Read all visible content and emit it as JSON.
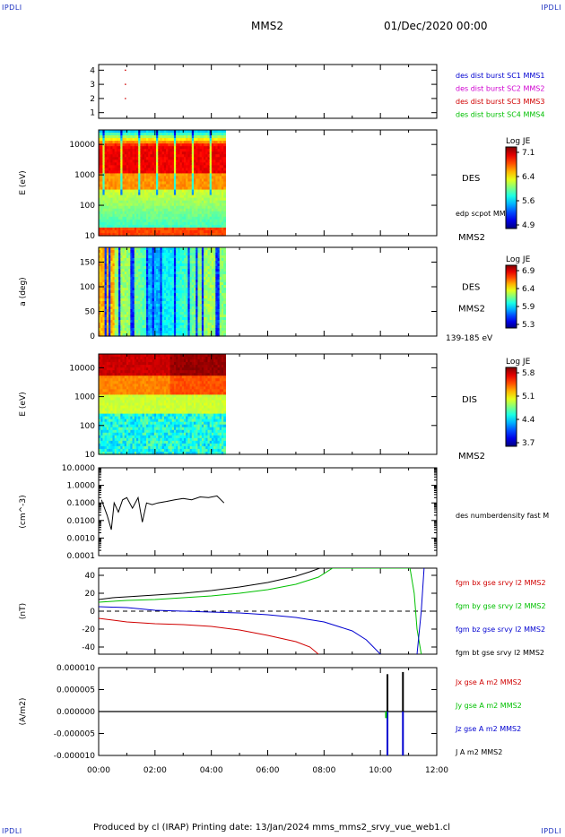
{
  "header": {
    "corner_tl": "IPDLI",
    "corner_tr": "IPDLI",
    "corner_bl": "IPDLI",
    "corner_br": "IPDLI",
    "title": "MMS2",
    "date": "01/Dec/2020 00:00"
  },
  "footer": {
    "text": "Produced by cl (IRAP)   Printing date: 13/Jan/2024   mms_mms2_srvy_vue_web1.cl"
  },
  "colors": {
    "blue": "#0000d0",
    "magenta": "#d000d0",
    "red": "#d00000",
    "green": "#00c000",
    "black": "#000000"
  },
  "chart_data": [
    {
      "type": "scatter",
      "name": "spacecraft",
      "x_ticks": [
        "00:00",
        "02:00",
        "04:00",
        "06:00",
        "08:00",
        "10:00",
        "12:00"
      ],
      "xlim_hours": [
        0,
        12
      ],
      "yticks": [
        "1",
        "2",
        "3",
        "4"
      ],
      "ylim": [
        0.6,
        4.4
      ],
      "legend": [
        {
          "label": "des dist burst SC1 MMS1",
          "color": "#0000d0"
        },
        {
          "label": "des dist burst SC2 MMS2",
          "color": "#d000d0"
        },
        {
          "label": "des dist burst SC3 MMS3",
          "color": "#d00000"
        },
        {
          "label": "des dist burst SC4 MMS4",
          "color": "#00c000"
        }
      ],
      "points": [
        {
          "x": 0.95,
          "y": 3,
          "color": "#d00000"
        },
        {
          "x": 0.95,
          "y": 2,
          "color": "#d00000"
        },
        {
          "x": 0.95,
          "y": 4,
          "color": "#d00000"
        }
      ]
    },
    {
      "type": "heatmap",
      "ylabel": "E (eV)",
      "yticks": [
        "10",
        "100",
        "1000",
        "10000"
      ],
      "scale": "log",
      "ylim": [
        10,
        30000
      ],
      "data_end_hours": 4.5,
      "label": "DES",
      "sc_label": "MMS2",
      "note": "edp scpot MMS2",
      "colorbar": {
        "title": "Log JE",
        "ticks": [
          "7.1",
          "6.4",
          "5.6",
          "4.9"
        ]
      }
    },
    {
      "type": "heatmap",
      "ylabel": "a (deg)",
      "yticks": [
        "0",
        "50",
        "100",
        "150"
      ],
      "ylim": [
        0,
        180
      ],
      "data_end_hours": 4.5,
      "label": "DES",
      "sc_label": "MMS2",
      "note": "139-185 eV",
      "colorbar": {
        "title": "Log JE",
        "ticks": [
          "6.9",
          "6.4",
          "5.9",
          "5.3"
        ]
      }
    },
    {
      "type": "heatmap",
      "ylabel": "E (eV)",
      "yticks": [
        "10",
        "100",
        "1000",
        "10000"
      ],
      "scale": "log",
      "ylim": [
        10,
        30000
      ],
      "data_end_hours": 4.5,
      "label": "DIS",
      "sc_label": "MMS2",
      "colorbar": {
        "title": "Log JE",
        "ticks": [
          "5.8",
          "5.1",
          "4.4",
          "3.7"
        ]
      }
    },
    {
      "type": "line",
      "ylabel": "(cm^-3)",
      "scale": "log",
      "yticks": [
        "0.0001",
        "0.0010",
        "0.0100",
        "0.1000",
        "1.0000",
        "10.0000"
      ],
      "ylim": [
        0.0001,
        10
      ],
      "legend": [
        {
          "label": "des numberdensity fast M",
          "color": "#000000"
        }
      ],
      "series": [
        {
          "name": "des numberdensity fast M",
          "x_hours": [
            0.1,
            0.3,
            0.45,
            0.55,
            0.7,
            0.85,
            1.0,
            1.2,
            1.4,
            1.55,
            1.7,
            1.9,
            2.1,
            2.4,
            2.7,
            3.0,
            3.3,
            3.6,
            3.9,
            4.2,
            4.45
          ],
          "values": [
            0.15,
            0.02,
            0.003,
            0.1,
            0.03,
            0.15,
            0.2,
            0.05,
            0.2,
            0.008,
            0.1,
            0.08,
            0.1,
            0.12,
            0.15,
            0.18,
            0.15,
            0.22,
            0.2,
            0.25,
            0.1
          ]
        }
      ]
    },
    {
      "type": "line",
      "ylabel": "(nT)",
      "yticks": [
        "-40",
        "-20",
        "0",
        "20",
        "40"
      ],
      "ylim": [
        -48,
        48
      ],
      "legend": [
        {
          "label": "fgm bx gse srvy l2 MMS2",
          "color": "#d00000"
        },
        {
          "label": "fgm by gse srvy l2 MMS2",
          "color": "#00c000"
        },
        {
          "label": "fgm bz gse srvy l2 MMS2",
          "color": "#0000d0"
        },
        {
          "label": "fgm bt gse srvy l2 MMS2",
          "color": "#000000"
        }
      ],
      "series": [
        {
          "name": "fgm bt gse srvy l2 MMS2",
          "color": "#000000",
          "x_hours": [
            0,
            0.5,
            1,
            2,
            3,
            4,
            5,
            6,
            7,
            7.5,
            7.85
          ],
          "values": [
            13,
            15,
            16,
            18,
            20,
            23,
            27,
            32,
            39,
            44,
            48
          ]
        },
        {
          "name": "fgm by gse srvy l2 MMS2",
          "color": "#00c000",
          "x_hours": [
            0,
            0.5,
            1,
            2,
            3,
            4,
            5,
            6,
            7,
            7.8,
            8.3,
            11.05,
            11.2,
            11.3,
            11.45
          ],
          "values": [
            10,
            11,
            12,
            13,
            15,
            17,
            20,
            24,
            30,
            38,
            48,
            48,
            20,
            -20,
            -48
          ]
        },
        {
          "name": "fgm bz gse srvy l2 MMS2",
          "color": "#0000d0",
          "x_hours": [
            0,
            1,
            2,
            3,
            4,
            5,
            6,
            7,
            8,
            9,
            9.5,
            10
          ],
          "values": [
            5,
            4,
            1,
            0,
            -1,
            -2,
            -4,
            -7,
            -12,
            -22,
            -32,
            -48
          ]
        },
        {
          "name": "fgm bz gse srvy l2 MMS2 (late)",
          "color": "#0000d0",
          "x_hours": [
            11.3,
            11.45,
            11.55
          ],
          "values": [
            -48,
            0,
            48
          ]
        },
        {
          "name": "fgm bx gse srvy l2 MMS2",
          "color": "#d00000",
          "x_hours": [
            0,
            1,
            2,
            3,
            4,
            5,
            6,
            7,
            7.5,
            7.8
          ],
          "values": [
            -8,
            -12,
            -14,
            -15,
            -17,
            -21,
            -27,
            -34,
            -40,
            -48
          ]
        }
      ]
    },
    {
      "type": "line",
      "ylabel": "(A/m2)",
      "yticks": [
        "-0.000010",
        "-0.000005",
        "0.000000",
        "0.000005",
        "0.000010"
      ],
      "ylim": [
        -1e-05,
        1e-05
      ],
      "legend": [
        {
          "label": "Jx gse A m2 MMS2",
          "color": "#d00000"
        },
        {
          "label": "Jy gse A m2 MMS2",
          "color": "#00c000"
        },
        {
          "label": "Jz gse A m2 MMS2",
          "color": "#0000d0"
        },
        {
          "label": "J A m2 MMS2",
          "color": "#000000"
        }
      ],
      "series": [
        {
          "name": "J A m2 MMS2",
          "color": "#000000",
          "spikes": [
            {
              "x": 10.25,
              "value": 8.5e-06
            },
            {
              "x": 10.8,
              "value": 9e-06
            }
          ]
        },
        {
          "name": "Jz gse A m2 MMS2",
          "color": "#0000d0",
          "spikes": [
            {
              "x": 10.25,
              "value": -1e-05
            },
            {
              "x": 10.8,
              "value": -1e-05
            }
          ]
        },
        {
          "name": "Jy gse A m2 MMS2",
          "color": "#00c000",
          "spikes": [
            {
              "x": 10.2,
              "value": -1.5e-06
            }
          ]
        }
      ]
    }
  ]
}
